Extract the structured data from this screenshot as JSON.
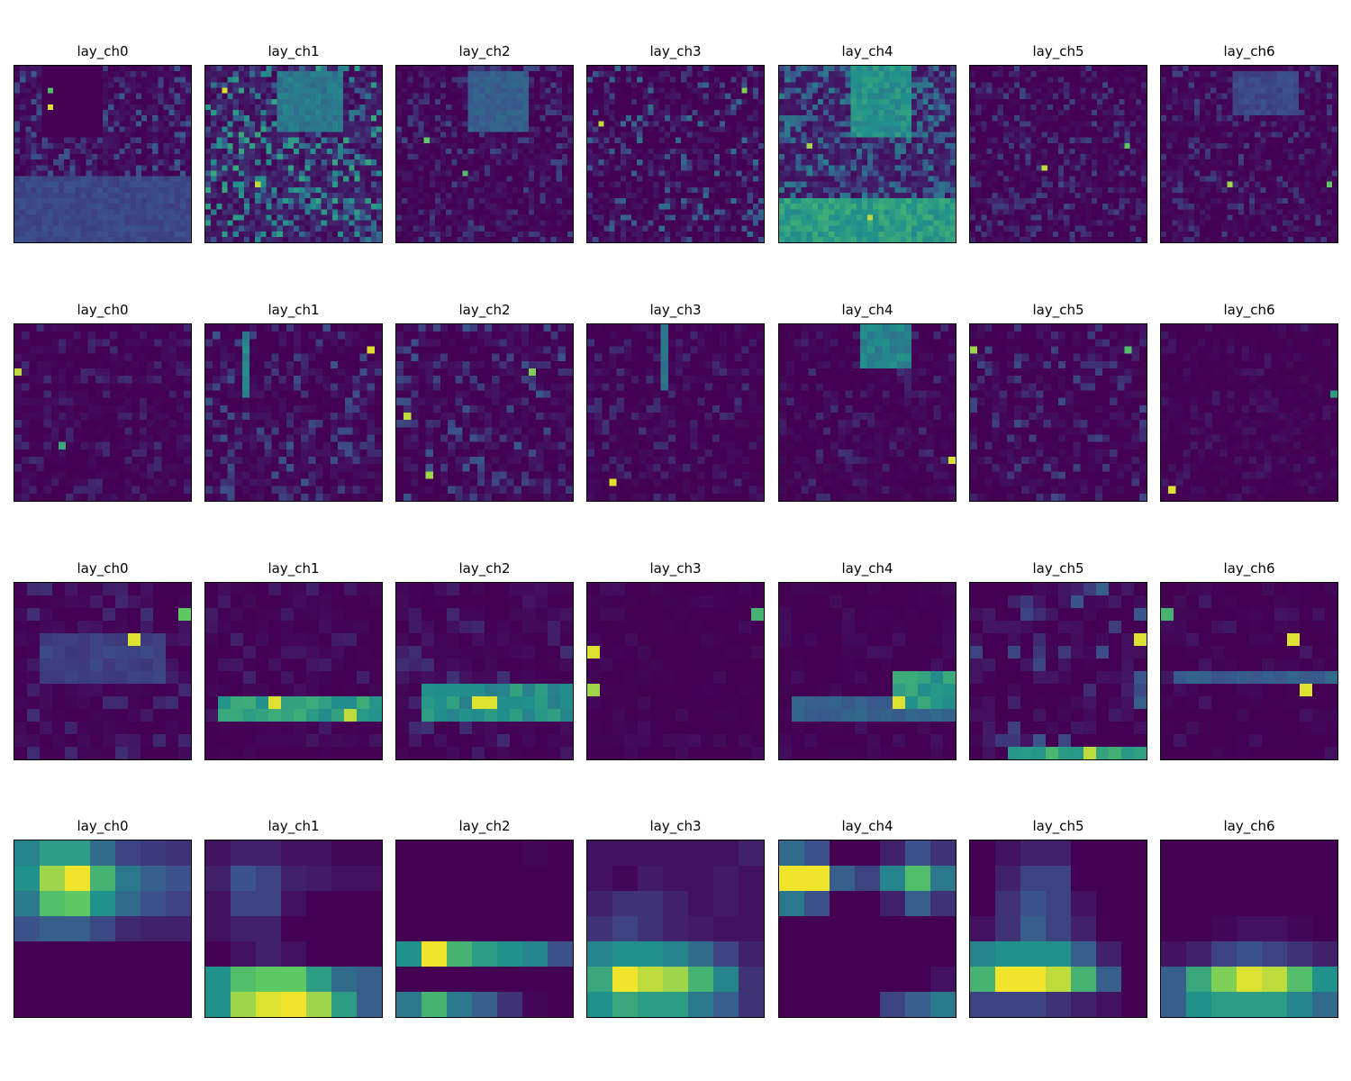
{
  "figure": {
    "colormap": "viridis",
    "colormap_stops": [
      "#440154",
      "#3b528b",
      "#21918c",
      "#5ec962",
      "#fde725"
    ]
  },
  "chart_data": [
    {
      "type": "heatmap",
      "title": "lay_ch0",
      "row": 0,
      "grid": 32,
      "seed": 101,
      "base": 0.12,
      "noise": 0.18,
      "regions": [
        {
          "x": [
            5,
            15
          ],
          "y": [
            0,
            12
          ],
          "v": 0.0
        },
        {
          "x": [
            0,
            31
          ],
          "y": [
            20,
            31
          ],
          "v": 0.22
        }
      ],
      "hotspots": [
        {
          "x": 6,
          "y": 7,
          "v": 0.95
        },
        {
          "x": 6,
          "y": 4,
          "v": 0.7
        }
      ]
    },
    {
      "type": "heatmap",
      "title": "lay_ch1",
      "row": 0,
      "grid": 32,
      "seed": 102,
      "base": 0.3,
      "noise": 0.3,
      "regions": [
        {
          "x": [
            13,
            24
          ],
          "y": [
            1,
            11
          ],
          "v": 0.4
        }
      ],
      "hotspots": [
        {
          "x": 3,
          "y": 4,
          "v": 0.95
        },
        {
          "x": 9,
          "y": 21,
          "v": 0.9
        }
      ]
    },
    {
      "type": "heatmap",
      "title": "lay_ch2",
      "row": 0,
      "grid": 32,
      "seed": 103,
      "base": 0.06,
      "noise": 0.16,
      "regions": [
        {
          "x": [
            13,
            23
          ],
          "y": [
            1,
            11
          ],
          "v": 0.3
        }
      ],
      "hotspots": [
        {
          "x": 5,
          "y": 13,
          "v": 0.75
        },
        {
          "x": 12,
          "y": 19,
          "v": 0.7
        }
      ]
    },
    {
      "type": "heatmap",
      "title": "lay_ch3",
      "row": 0,
      "grid": 32,
      "seed": 104,
      "base": 0.05,
      "noise": 0.32,
      "regions": [],
      "hotspots": [
        {
          "x": 2,
          "y": 10,
          "v": 0.9
        },
        {
          "x": 28,
          "y": 4,
          "v": 0.8
        }
      ]
    },
    {
      "type": "heatmap",
      "title": "lay_ch4",
      "row": 0,
      "grid": 32,
      "seed": 105,
      "base": 0.28,
      "noise": 0.15,
      "regions": [
        {
          "x": [
            13,
            23
          ],
          "y": [
            0,
            12
          ],
          "v": 0.5
        },
        {
          "x": 0,
          "y": [
            24,
            31
          ],
          "v": 0.55
        }
      ],
      "hotspots": [
        {
          "x": 5,
          "y": 14,
          "v": 0.85
        },
        {
          "x": 16,
          "y": 27,
          "v": 0.9
        }
      ]
    },
    {
      "type": "heatmap",
      "title": "lay_ch5",
      "row": 0,
      "grid": 32,
      "seed": 106,
      "base": 0.04,
      "noise": 0.18,
      "regions": [],
      "hotspots": [
        {
          "x": 13,
          "y": 18,
          "v": 0.9
        },
        {
          "x": 28,
          "y": 14,
          "v": 0.75
        }
      ]
    },
    {
      "type": "heatmap",
      "title": "lay_ch6",
      "row": 0,
      "grid": 32,
      "seed": 107,
      "base": 0.05,
      "noise": 0.16,
      "regions": [
        {
          "x": [
            13,
            24
          ],
          "y": [
            1,
            8
          ],
          "v": 0.22
        }
      ],
      "hotspots": [
        {
          "x": 12,
          "y": 21,
          "v": 0.85
        },
        {
          "x": 30,
          "y": 21,
          "v": 0.75
        }
      ]
    },
    {
      "type": "heatmap",
      "title": "lay_ch0",
      "row": 1,
      "grid": 24,
      "seed": 201,
      "base": 0.02,
      "noise": 0.12,
      "regions": [],
      "hotspots": [
        {
          "x": 0,
          "y": 6,
          "v": 0.9
        },
        {
          "x": 6,
          "y": 16,
          "v": 0.6
        }
      ]
    },
    {
      "type": "heatmap",
      "title": "lay_ch1",
      "row": 1,
      "grid": 24,
      "seed": 202,
      "base": 0.06,
      "noise": 0.2,
      "regions": [
        {
          "x": 5,
          "y": [
            1,
            9
          ],
          "v": 0.45
        }
      ],
      "hotspots": [
        {
          "x": 22,
          "y": 3,
          "v": 0.95
        }
      ]
    },
    {
      "type": "heatmap",
      "title": "lay_ch2",
      "row": 1,
      "grid": 24,
      "seed": 203,
      "base": 0.05,
      "noise": 0.22,
      "regions": [],
      "hotspots": [
        {
          "x": 1,
          "y": 12,
          "v": 0.9
        },
        {
          "x": 4,
          "y": 20,
          "v": 0.85
        },
        {
          "x": 18,
          "y": 6,
          "v": 0.8
        }
      ]
    },
    {
      "type": "heatmap",
      "title": "lay_ch3",
      "row": 1,
      "grid": 24,
      "seed": 204,
      "base": 0.02,
      "noise": 0.14,
      "regions": [
        {
          "x": 10,
          "y": [
            0,
            8
          ],
          "v": 0.4
        }
      ],
      "hotspots": [
        {
          "x": 3,
          "y": 21,
          "v": 0.95
        }
      ]
    },
    {
      "type": "heatmap",
      "title": "lay_ch4",
      "row": 1,
      "grid": 24,
      "seed": 205,
      "base": 0.03,
      "noise": 0.12,
      "regions": [
        {
          "x": [
            11,
            17
          ],
          "y": [
            0,
            5
          ],
          "v": 0.45
        }
      ],
      "hotspots": [
        {
          "x": 23,
          "y": 18,
          "v": 0.95
        }
      ]
    },
    {
      "type": "heatmap",
      "title": "lay_ch5",
      "row": 1,
      "grid": 24,
      "seed": 206,
      "base": 0.03,
      "noise": 0.2,
      "regions": [],
      "hotspots": [
        {
          "x": 0,
          "y": 3,
          "v": 0.85
        },
        {
          "x": 21,
          "y": 3,
          "v": 0.7
        }
      ]
    },
    {
      "type": "heatmap",
      "title": "lay_ch6",
      "row": 1,
      "grid": 24,
      "seed": 207,
      "base": 0.0,
      "noise": 0.08,
      "regions": [],
      "hotspots": [
        {
          "x": 1,
          "y": 22,
          "v": 0.95
        },
        {
          "x": 23,
          "y": 9,
          "v": 0.55
        }
      ]
    },
    {
      "type": "heatmap",
      "title": "lay_ch0",
      "row": 2,
      "grid": 14,
      "seed": 301,
      "base": 0.04,
      "noise": 0.1,
      "regions": [
        {
          "x": [
            2,
            11
          ],
          "y": [
            4,
            7
          ],
          "v": 0.2
        }
      ],
      "hotspots": [
        {
          "x": 9,
          "y": 4,
          "v": 0.95
        },
        {
          "x": 13,
          "y": 2,
          "v": 0.75
        }
      ]
    },
    {
      "type": "heatmap",
      "title": "lay_ch1",
      "row": 2,
      "grid": 14,
      "seed": 302,
      "base": 0.02,
      "noise": 0.08,
      "regions": [
        {
          "x": [
            1,
            13
          ],
          "y": [
            9,
            10
          ],
          "v": 0.55
        }
      ],
      "hotspots": [
        {
          "x": 5,
          "y": 9,
          "v": 0.95
        },
        {
          "x": 11,
          "y": 10,
          "v": 0.9
        }
      ]
    },
    {
      "type": "heatmap",
      "title": "lay_ch2",
      "row": 2,
      "grid": 14,
      "seed": 303,
      "base": 0.05,
      "noise": 0.1,
      "regions": [
        {
          "x": [
            2,
            13
          ],
          "y": [
            8,
            10
          ],
          "v": 0.5
        }
      ],
      "hotspots": [
        {
          "x": 6,
          "y": 9,
          "v": 0.95
        },
        {
          "x": 7,
          "y": 9,
          "v": 0.95
        }
      ]
    },
    {
      "type": "heatmap",
      "title": "lay_ch3",
      "row": 2,
      "grid": 14,
      "seed": 304,
      "base": 0.0,
      "noise": 0.04,
      "regions": [],
      "hotspots": [
        {
          "x": 0,
          "y": 5,
          "v": 0.95
        },
        {
          "x": 0,
          "y": 8,
          "v": 0.85
        },
        {
          "x": 13,
          "y": 2,
          "v": 0.65
        }
      ]
    },
    {
      "type": "heatmap",
      "title": "lay_ch4",
      "row": 2,
      "grid": 14,
      "seed": 305,
      "base": 0.0,
      "noise": 0.05,
      "regions": [
        {
          "x": [
            1,
            13
          ],
          "y": [
            9,
            10
          ],
          "v": 0.3
        },
        {
          "x": [
            9,
            13
          ],
          "y": [
            7,
            9
          ],
          "v": 0.55
        }
      ],
      "hotspots": [
        {
          "x": 9,
          "y": 9,
          "v": 0.95
        }
      ]
    },
    {
      "type": "heatmap",
      "title": "lay_ch5",
      "row": 2,
      "grid": 14,
      "seed": 306,
      "base": 0.06,
      "noise": 0.25,
      "regions": [
        {
          "x": [
            3,
            13
          ],
          "y": 13,
          "v": 0.6
        }
      ],
      "hotspots": [
        {
          "x": 13,
          "y": 4,
          "v": 0.95
        },
        {
          "x": 9,
          "y": 13,
          "v": 0.9
        }
      ]
    },
    {
      "type": "heatmap",
      "title": "lay_ch6",
      "row": 2,
      "grid": 14,
      "seed": 307,
      "base": 0.0,
      "noise": 0.08,
      "regions": [
        {
          "x": [
            1,
            13
          ],
          "y": 7,
          "v": 0.3
        }
      ],
      "hotspots": [
        {
          "x": 10,
          "y": 4,
          "v": 0.95
        },
        {
          "x": 11,
          "y": 8,
          "v": 0.95
        },
        {
          "x": 0,
          "y": 2,
          "v": 0.65
        }
      ]
    },
    {
      "type": "heatmap",
      "title": "lay_ch0",
      "row": 3,
      "grid": 7,
      "seed": 401,
      "base": 0.0,
      "noise": 0.0,
      "values": [
        [
          0.45,
          0.55,
          0.55,
          0.35,
          0.2,
          0.18,
          0.15
        ],
        [
          0.5,
          0.85,
          0.98,
          0.65,
          0.4,
          0.3,
          0.25
        ],
        [
          0.4,
          0.7,
          0.75,
          0.5,
          0.35,
          0.25,
          0.2
        ],
        [
          0.25,
          0.3,
          0.3,
          0.22,
          0.12,
          0.1,
          0.1
        ],
        [
          0,
          0,
          0,
          0,
          0,
          0,
          0
        ],
        [
          0,
          0,
          0,
          0,
          0,
          0,
          0
        ],
        [
          0,
          0,
          0,
          0,
          0,
          0,
          0
        ]
      ]
    },
    {
      "type": "heatmap",
      "title": "lay_ch1",
      "row": 3,
      "grid": 7,
      "seed": 402,
      "base": 0.0,
      "noise": 0.0,
      "values": [
        [
          0.05,
          0.1,
          0.1,
          0.05,
          0.05,
          0.02,
          0.02
        ],
        [
          0.1,
          0.25,
          0.2,
          0.1,
          0.08,
          0.05,
          0.05
        ],
        [
          0.05,
          0.2,
          0.2,
          0.05,
          0.0,
          0.0,
          0.0
        ],
        [
          0.05,
          0.1,
          0.1,
          0.0,
          0.0,
          0.0,
          0.0
        ],
        [
          0.0,
          0.05,
          0.1,
          0.05,
          0.0,
          0.0,
          0.0
        ],
        [
          0.5,
          0.7,
          0.75,
          0.75,
          0.55,
          0.35,
          0.3
        ],
        [
          0.5,
          0.85,
          0.95,
          0.98,
          0.85,
          0.55,
          0.3
        ]
      ]
    },
    {
      "type": "heatmap",
      "title": "lay_ch2",
      "row": 3,
      "grid": 7,
      "seed": 403,
      "base": 0.0,
      "noise": 0.0,
      "values": [
        [
          0,
          0,
          0,
          0,
          0,
          0.02,
          0
        ],
        [
          0,
          0,
          0,
          0,
          0,
          0,
          0
        ],
        [
          0,
          0,
          0,
          0,
          0,
          0,
          0
        ],
        [
          0,
          0,
          0,
          0,
          0,
          0,
          0
        ],
        [
          0.5,
          0.98,
          0.65,
          0.55,
          0.5,
          0.45,
          0.25
        ],
        [
          0,
          0,
          0,
          0,
          0,
          0,
          0
        ],
        [
          0.4,
          0.65,
          0.4,
          0.3,
          0.15,
          0.02,
          0
        ]
      ]
    },
    {
      "type": "heatmap",
      "title": "lay_ch3",
      "row": 3,
      "grid": 7,
      "seed": 404,
      "base": 0.0,
      "noise": 0.0,
      "values": [
        [
          0.05,
          0.05,
          0.05,
          0.05,
          0.05,
          0.05,
          0.1
        ],
        [
          0.05,
          0.02,
          0.08,
          0.05,
          0.05,
          0.08,
          0.05
        ],
        [
          0.1,
          0.15,
          0.15,
          0.1,
          0.05,
          0.08,
          0.05
        ],
        [
          0.15,
          0.2,
          0.15,
          0.1,
          0.08,
          0.05,
          0.05
        ],
        [
          0.45,
          0.5,
          0.5,
          0.45,
          0.35,
          0.2,
          0.1
        ],
        [
          0.6,
          0.98,
          0.9,
          0.85,
          0.65,
          0.45,
          0.15
        ],
        [
          0.5,
          0.6,
          0.55,
          0.55,
          0.4,
          0.3,
          0.15
        ]
      ]
    },
    {
      "type": "heatmap",
      "title": "lay_ch4",
      "row": 3,
      "grid": 7,
      "seed": 405,
      "base": 0.0,
      "noise": 0.0,
      "values": [
        [
          0.35,
          0.25,
          0,
          0,
          0.1,
          0.25,
          0.15
        ],
        [
          0.98,
          0.98,
          0.3,
          0.2,
          0.45,
          0.7,
          0.4
        ],
        [
          0.4,
          0.25,
          0,
          0,
          0.1,
          0.3,
          0.15
        ],
        [
          0,
          0,
          0,
          0,
          0,
          0,
          0
        ],
        [
          0,
          0,
          0,
          0,
          0,
          0,
          0
        ],
        [
          0,
          0,
          0,
          0,
          0,
          0,
          0.05
        ],
        [
          0,
          0,
          0,
          0,
          0.2,
          0.3,
          0.4
        ]
      ]
    },
    {
      "type": "heatmap",
      "title": "lay_ch5",
      "row": 3,
      "grid": 7,
      "seed": 406,
      "base": 0.0,
      "noise": 0.0,
      "values": [
        [
          0,
          0.05,
          0.1,
          0.1,
          0,
          0,
          0
        ],
        [
          0,
          0.1,
          0.2,
          0.2,
          0,
          0,
          0
        ],
        [
          0,
          0.15,
          0.25,
          0.2,
          0.05,
          0,
          0
        ],
        [
          0.05,
          0.15,
          0.3,
          0.2,
          0.1,
          0,
          0
        ],
        [
          0.45,
          0.5,
          0.5,
          0.5,
          0.3,
          0.1,
          0
        ],
        [
          0.65,
          0.98,
          0.98,
          0.9,
          0.65,
          0.3,
          0
        ],
        [
          0.2,
          0.2,
          0.2,
          0.15,
          0.1,
          0.05,
          0
        ]
      ]
    },
    {
      "type": "heatmap",
      "title": "lay_ch6",
      "row": 3,
      "grid": 7,
      "seed": 407,
      "base": 0.0,
      "noise": 0.0,
      "values": [
        [
          0,
          0,
          0,
          0,
          0,
          0,
          0
        ],
        [
          0,
          0,
          0,
          0,
          0,
          0,
          0
        ],
        [
          0,
          0,
          0,
          0,
          0,
          0,
          0
        ],
        [
          0,
          0,
          0.02,
          0.05,
          0.05,
          0.02,
          0
        ],
        [
          0.05,
          0.1,
          0.2,
          0.25,
          0.2,
          0.15,
          0.1
        ],
        [
          0.3,
          0.6,
          0.8,
          0.95,
          0.9,
          0.7,
          0.5
        ],
        [
          0.3,
          0.5,
          0.55,
          0.55,
          0.55,
          0.45,
          0.35
        ]
      ]
    }
  ]
}
